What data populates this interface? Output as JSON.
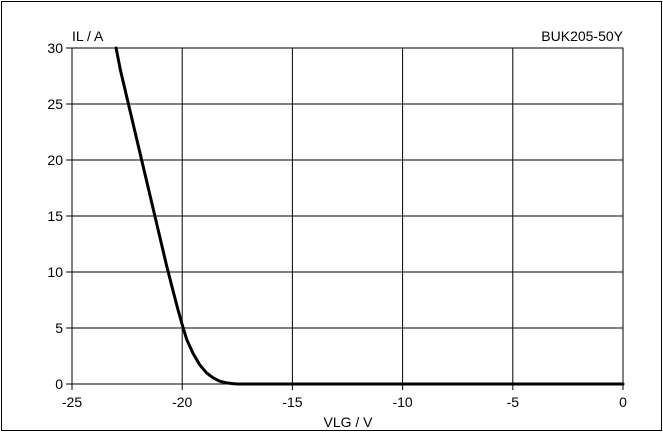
{
  "chart_data": {
    "type": "line",
    "title": "BUK205-50Y",
    "xlabel": "VLG / V",
    "ylabel": "IL / A",
    "xlim": [
      -25,
      0
    ],
    "ylim": [
      0,
      30
    ],
    "x_ticks": [
      -25,
      -20,
      -15,
      -10,
      -5,
      0
    ],
    "y_ticks": [
      0,
      5,
      10,
      15,
      20,
      25,
      30
    ],
    "x_tick_labels": [
      "-25",
      "-20",
      "-15",
      "-10",
      "-5",
      "0"
    ],
    "y_tick_labels": [
      "0",
      "5",
      "10",
      "15",
      "20",
      "25",
      "30"
    ],
    "grid": true,
    "series": [
      {
        "x": [
          -23.0,
          -22.8,
          -22.5,
          -22.2,
          -21.9,
          -21.6,
          -21.3,
          -21.0,
          -20.7,
          -20.4,
          -20.2,
          -20.0,
          -19.8,
          -19.5,
          -19.2,
          -18.9,
          -18.6,
          -18.3,
          -18.0,
          -17.7,
          -17.5,
          -17.0,
          -15.0,
          -10.0,
          -5.0,
          0.0
        ],
        "y": [
          30.0,
          28.0,
          25.5,
          23.0,
          20.5,
          18.0,
          15.5,
          13.0,
          10.5,
          8.2,
          6.7,
          5.3,
          4.0,
          2.7,
          1.7,
          1.0,
          0.55,
          0.25,
          0.1,
          0.03,
          0.0,
          0.0,
          0.0,
          0.0,
          0.0,
          0.0
        ]
      }
    ],
    "colors": {
      "curve": "#000000",
      "grid": "#000000",
      "axis": "#000000"
    }
  }
}
